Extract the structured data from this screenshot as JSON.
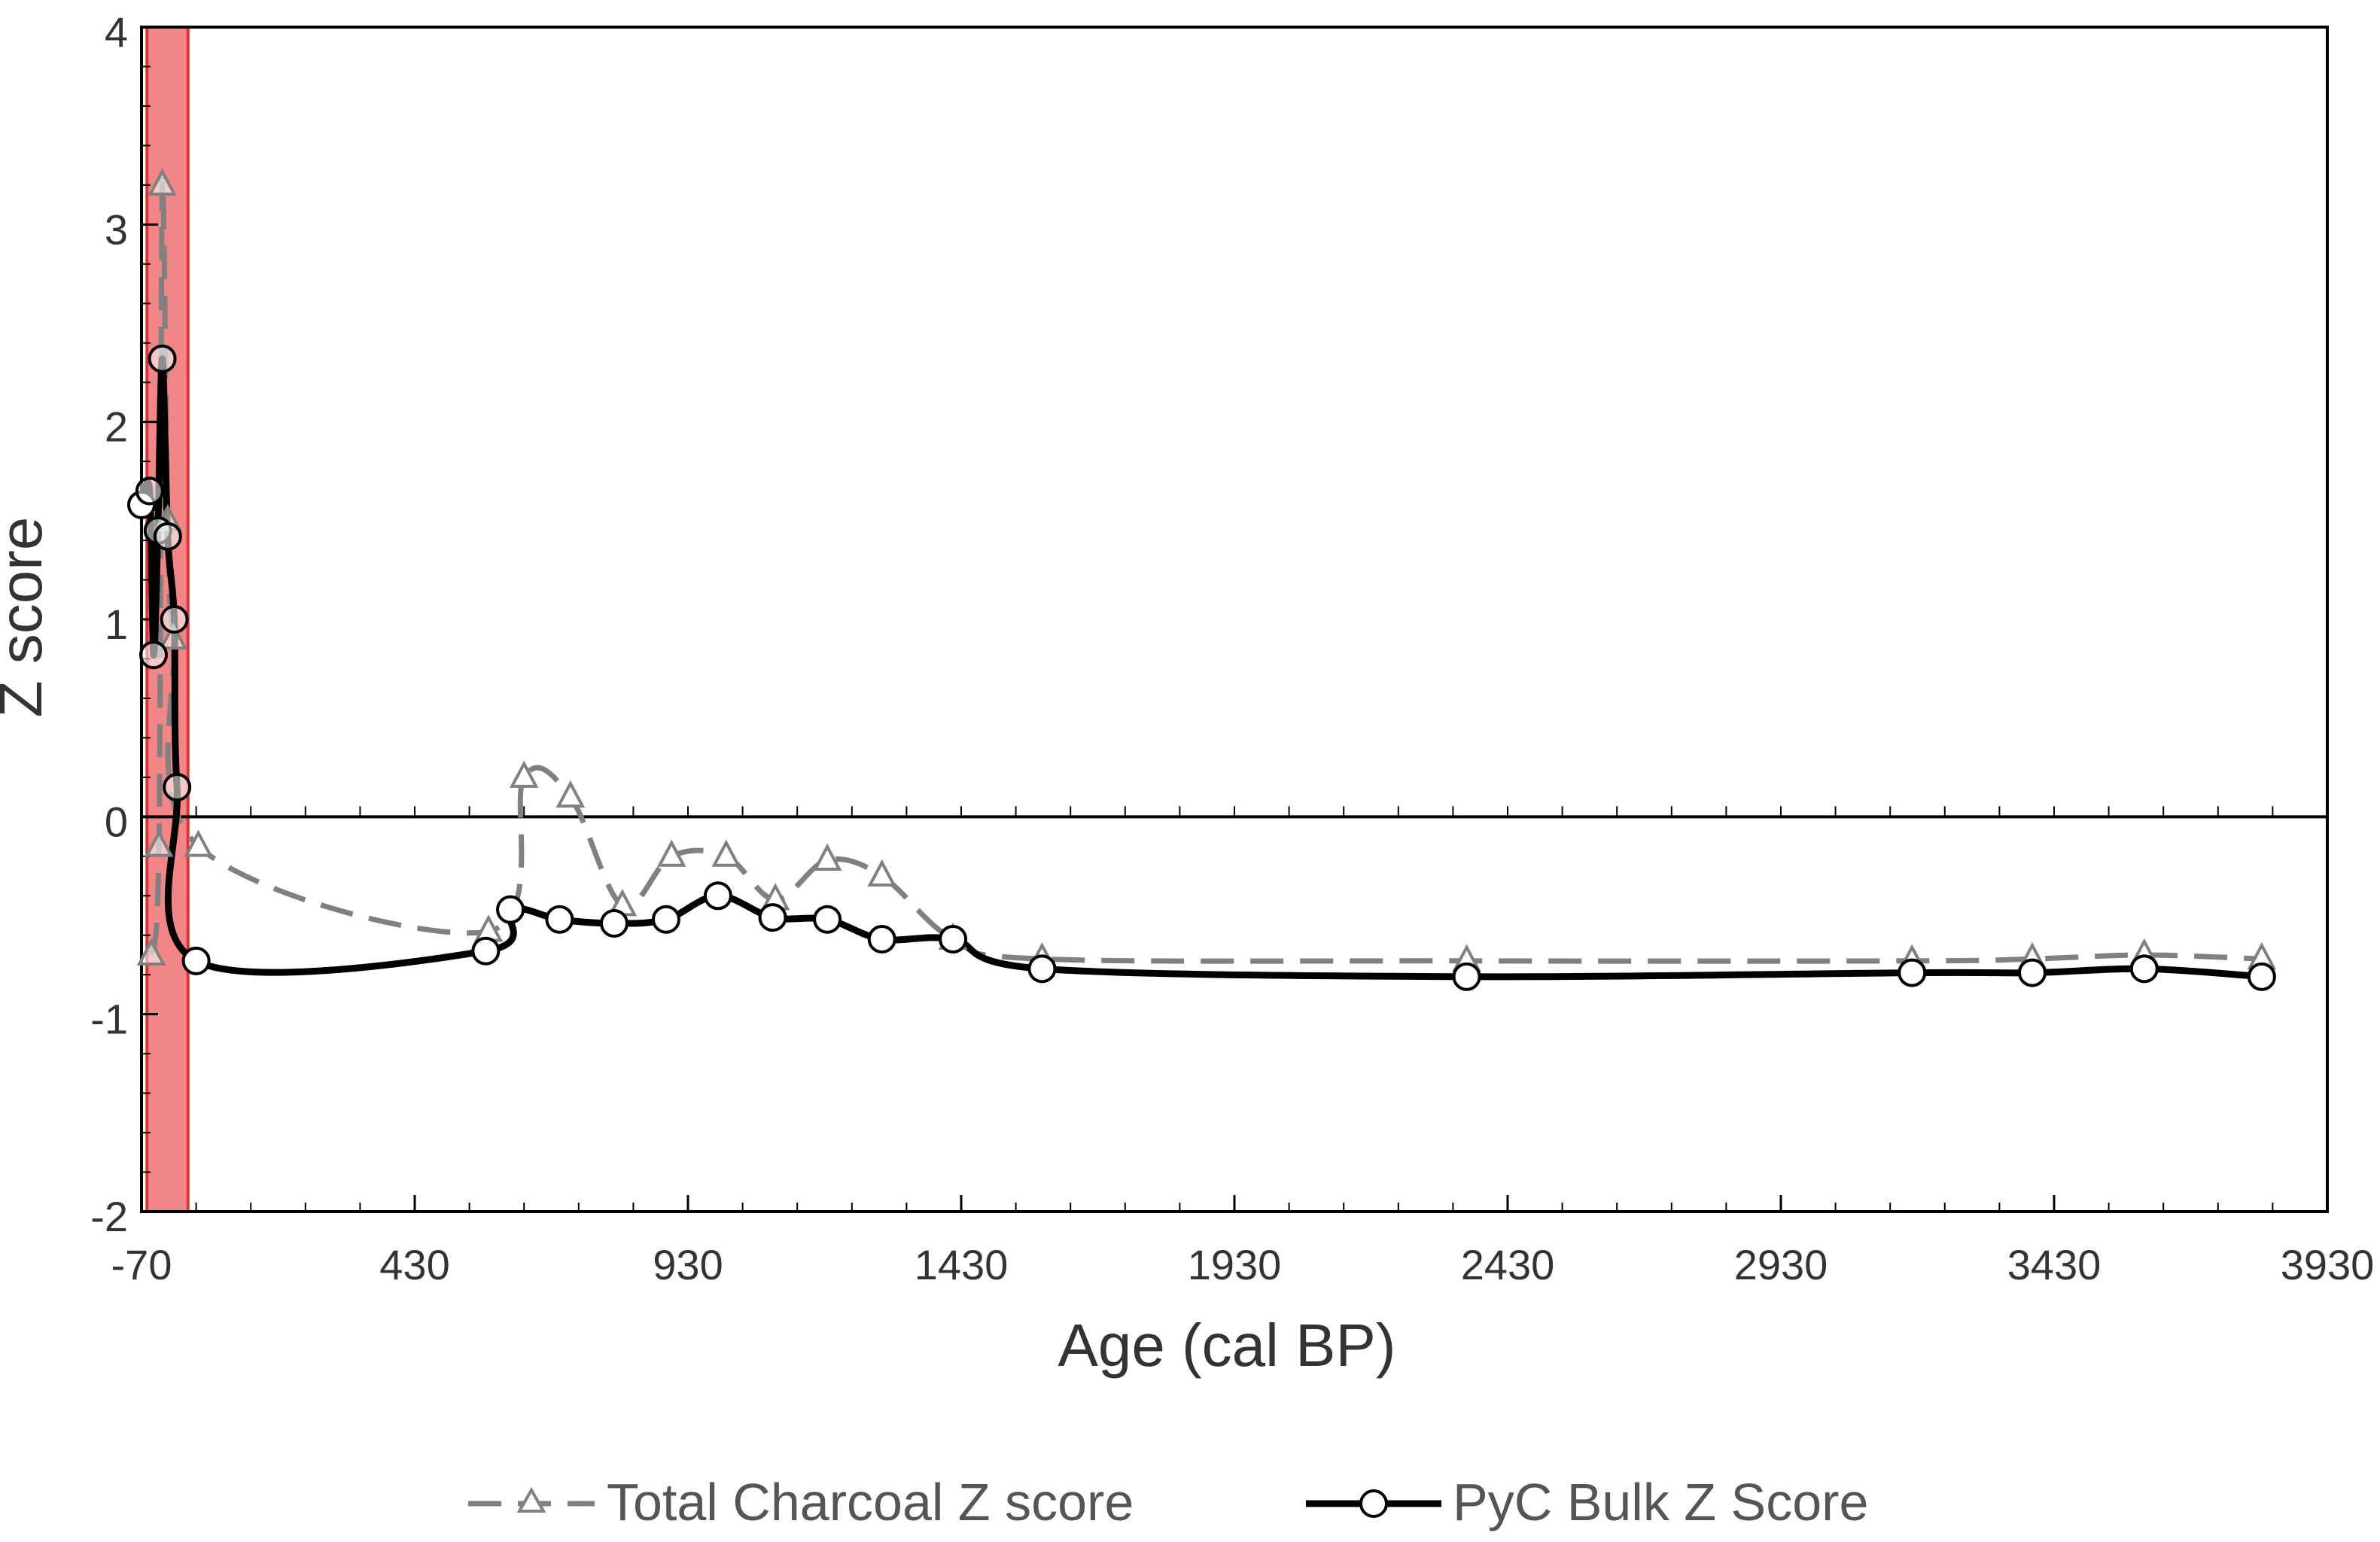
{
  "chart_data": {
    "type": "line",
    "title": "",
    "xlabel": "Age (cal BP)",
    "ylabel": "Z score",
    "xlim": [
      -70,
      3930
    ],
    "ylim": [
      -2,
      4
    ],
    "xticks": [
      -70,
      430,
      930,
      1430,
      1930,
      2430,
      2930,
      3430,
      3930
    ],
    "yticks": [
      4,
      3,
      2,
      1,
      0,
      -1,
      -2
    ],
    "x_minor_step": 100,
    "grid": false,
    "zero_line": true,
    "highlight_band": {
      "x_from": -60,
      "x_to": 15,
      "color": "#f07070"
    },
    "legend": {
      "placement": "bottom"
    },
    "series": [
      {
        "name": "Total Charcoal Z score",
        "style": "dashed",
        "marker": "triangle",
        "color": "#808080",
        "points": [
          [
            -52,
            -0.7
          ],
          [
            -38,
            -0.15
          ],
          [
            -32,
            3.2
          ],
          [
            -22,
            1.5
          ],
          [
            -12,
            0.9
          ],
          [
            34,
            -0.15
          ],
          [
            565,
            -0.58
          ],
          [
            630,
            0.2
          ],
          [
            715,
            0.1
          ],
          [
            810,
            -0.45
          ],
          [
            900,
            -0.2
          ],
          [
            1000,
            -0.2
          ],
          [
            1090,
            -0.42
          ],
          [
            1185,
            -0.22
          ],
          [
            1285,
            -0.3
          ],
          [
            1415,
            -0.62
          ],
          [
            1578,
            -0.72
          ],
          [
            2355,
            -0.73
          ],
          [
            3170,
            -0.73
          ],
          [
            3390,
            -0.72
          ],
          [
            3595,
            -0.7
          ],
          [
            3810,
            -0.72
          ]
        ]
      },
      {
        "name": "PyC Bulk Z Score",
        "style": "solid",
        "marker": "circle",
        "color": "#000000",
        "points": [
          [
            -70,
            1.58
          ],
          [
            -55,
            1.65
          ],
          [
            -48,
            0.82
          ],
          [
            -40,
            1.45
          ],
          [
            -32,
            2.32
          ],
          [
            -22,
            1.42
          ],
          [
            -10,
            1.0
          ],
          [
            -5,
            0.15
          ],
          [
            30,
            -0.73
          ],
          [
            560,
            -0.68
          ],
          [
            605,
            -0.47
          ],
          [
            695,
            -0.52
          ],
          [
            795,
            -0.54
          ],
          [
            890,
            -0.52
          ],
          [
            985,
            -0.4
          ],
          [
            1085,
            -0.51
          ],
          [
            1185,
            -0.52
          ],
          [
            1285,
            -0.62
          ],
          [
            1415,
            -0.62
          ],
          [
            1578,
            -0.77
          ],
          [
            2355,
            -0.81
          ],
          [
            3170,
            -0.79
          ],
          [
            3390,
            -0.79
          ],
          [
            3595,
            -0.77
          ],
          [
            3810,
            -0.81
          ]
        ]
      }
    ]
  }
}
